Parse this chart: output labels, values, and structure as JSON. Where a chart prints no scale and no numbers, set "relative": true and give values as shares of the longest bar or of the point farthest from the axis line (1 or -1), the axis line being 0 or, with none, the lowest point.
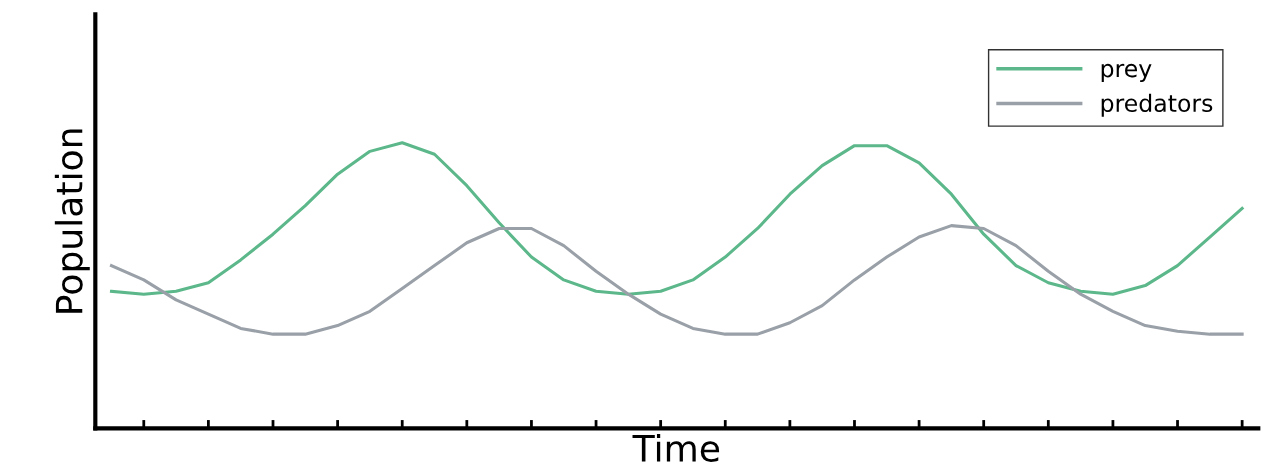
{
  "chart_data": {
    "type": "line",
    "relative": true,
    "xlabel": "Time",
    "ylabel": "Population",
    "legend": "top right",
    "grid": false,
    "tick_labels": false,
    "marker": "none",
    "line_style": "solid",
    "categories": [
      null,
      null,
      null,
      null,
      null,
      null,
      null,
      null,
      null,
      null,
      null,
      null,
      null,
      null,
      null,
      null,
      null,
      null,
      null,
      null,
      null,
      null,
      null,
      null,
      null,
      null,
      null,
      null,
      null,
      null,
      null,
      null,
      null,
      null,
      null,
      null
    ],
    "series": [
      {
        "name": "prey",
        "color": "#5cb88a",
        "values": [
          0.48,
          0.47,
          0.48,
          0.51,
          0.59,
          0.68,
          0.78,
          0.89,
          0.97,
          1.0,
          0.96,
          0.85,
          0.72,
          0.6,
          0.52,
          0.48,
          0.47,
          0.48,
          0.52,
          0.6,
          0.7,
          0.82,
          0.92,
          0.99,
          0.99,
          0.93,
          0.82,
          0.68,
          0.57,
          0.51,
          0.48,
          0.47,
          0.5,
          0.57,
          0.67,
          0.77
        ]
      },
      {
        "name": "predators",
        "color": "#9aa0a8",
        "values": [
          0.57,
          0.52,
          0.45,
          0.4,
          0.35,
          0.33,
          0.33,
          0.36,
          0.41,
          0.49,
          0.57,
          0.65,
          0.7,
          0.7,
          0.64,
          0.55,
          0.47,
          0.4,
          0.35,
          0.33,
          0.33,
          0.37,
          0.43,
          0.52,
          0.6,
          0.67,
          0.71,
          0.7,
          0.64,
          0.55,
          0.47,
          0.41,
          0.36,
          0.34,
          0.33,
          0.33
        ]
      }
    ]
  }
}
